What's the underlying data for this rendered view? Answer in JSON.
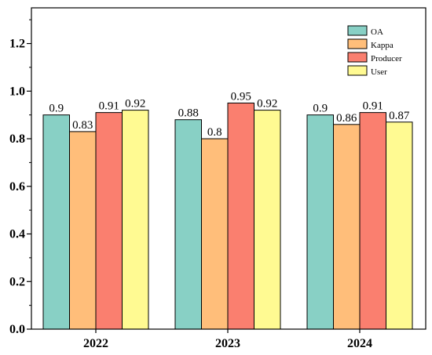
{
  "chart_data": {
    "type": "bar",
    "title": "",
    "xlabel": "",
    "ylabel": "",
    "categories": [
      "2022",
      "2023",
      "2024"
    ],
    "ylim": [
      0,
      1.35
    ],
    "yticks": [
      "0.0",
      "0.2",
      "0.4",
      "0.6",
      "0.8",
      "1.0",
      "1.2"
    ],
    "grid": false,
    "legend_position": "top-right",
    "series": [
      {
        "name": "OA",
        "color": "#88D0C5",
        "values": [
          0.9,
          0.88,
          0.9
        ],
        "labels": [
          "0.9",
          "0.88",
          "0.9"
        ]
      },
      {
        "name": "Kappa",
        "color": "#FFBE7A",
        "values": [
          0.83,
          0.8,
          0.86
        ],
        "labels": [
          "0.83",
          "0.8",
          "0.86"
        ]
      },
      {
        "name": "Producer",
        "color": "#FA7F6F",
        "values": [
          0.91,
          0.95,
          0.91
        ],
        "labels": [
          "0.91",
          "0.95",
          "0.91"
        ]
      },
      {
        "name": "User",
        "color": "#FFFA92",
        "values": [
          0.92,
          0.92,
          0.87
        ],
        "labels": [
          "0.92",
          "0.92",
          "0.87"
        ]
      }
    ]
  }
}
